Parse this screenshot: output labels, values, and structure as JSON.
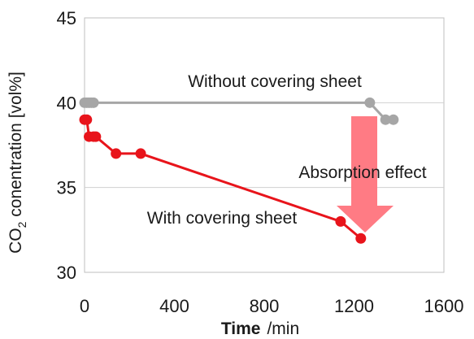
{
  "chart_data": {
    "type": "line",
    "xlabel": {
      "main": "Time",
      "unit": "/min"
    },
    "ylabel": {
      "prefix": "CO",
      "subscript": "2",
      "suffix": " conentration [vol%]"
    },
    "xlim": [
      0,
      1600
    ],
    "ylim": [
      30,
      45
    ],
    "xticks": [
      0,
      400,
      800,
      1200,
      1600
    ],
    "yticks": [
      30,
      35,
      40,
      45
    ],
    "grid": "horizontal",
    "series": [
      {
        "label": "Without covering sheet",
        "color": "#a6a6a6",
        "x": [
          0,
          10,
          20,
          30,
          40,
          1270,
          1340,
          1375
        ],
        "y": [
          40,
          40,
          40,
          40,
          40,
          40,
          39,
          39
        ]
      },
      {
        "label": "With covering sheet",
        "color": "#e8141b",
        "x": [
          0,
          10,
          20,
          40,
          50,
          140,
          250,
          1140,
          1230
        ],
        "y": [
          39,
          39,
          38,
          38,
          38,
          37,
          37,
          33,
          32
        ]
      }
    ],
    "annotations": [
      {
        "text": "Absorption effect",
        "color": "#ff7b84",
        "arrow": "down"
      }
    ]
  }
}
